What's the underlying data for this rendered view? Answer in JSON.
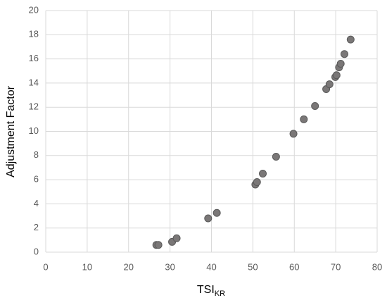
{
  "chart_data": {
    "type": "scatter",
    "y_label": "Adjustment Factor",
    "x_label": "TSI",
    "x_label_subscript": "KR",
    "x": [
      26.7,
      27.2,
      30.5,
      31.6,
      39.2,
      41.3,
      50.6,
      51.0,
      52.4,
      55.6,
      59.8,
      62.3,
      65.0,
      67.7,
      68.5,
      69.9,
      70.2,
      70.8,
      71.2,
      72.1,
      73.6
    ],
    "values": [
      0.6,
      0.6,
      0.85,
      1.15,
      2.8,
      3.25,
      5.6,
      5.8,
      6.5,
      7.9,
      9.8,
      11.0,
      12.1,
      13.5,
      13.9,
      14.5,
      14.65,
      15.3,
      15.6,
      16.4,
      17.6
    ],
    "color": "#7a7777",
    "xlim": [
      0,
      80
    ],
    "xticks": [
      0,
      10,
      20,
      30,
      40,
      50,
      60,
      70,
      80
    ],
    "ylim": [
      0,
      20
    ],
    "yticks": [
      0,
      2,
      4,
      6,
      8,
      10,
      12,
      14,
      16,
      18,
      20
    ],
    "grid": true
  }
}
